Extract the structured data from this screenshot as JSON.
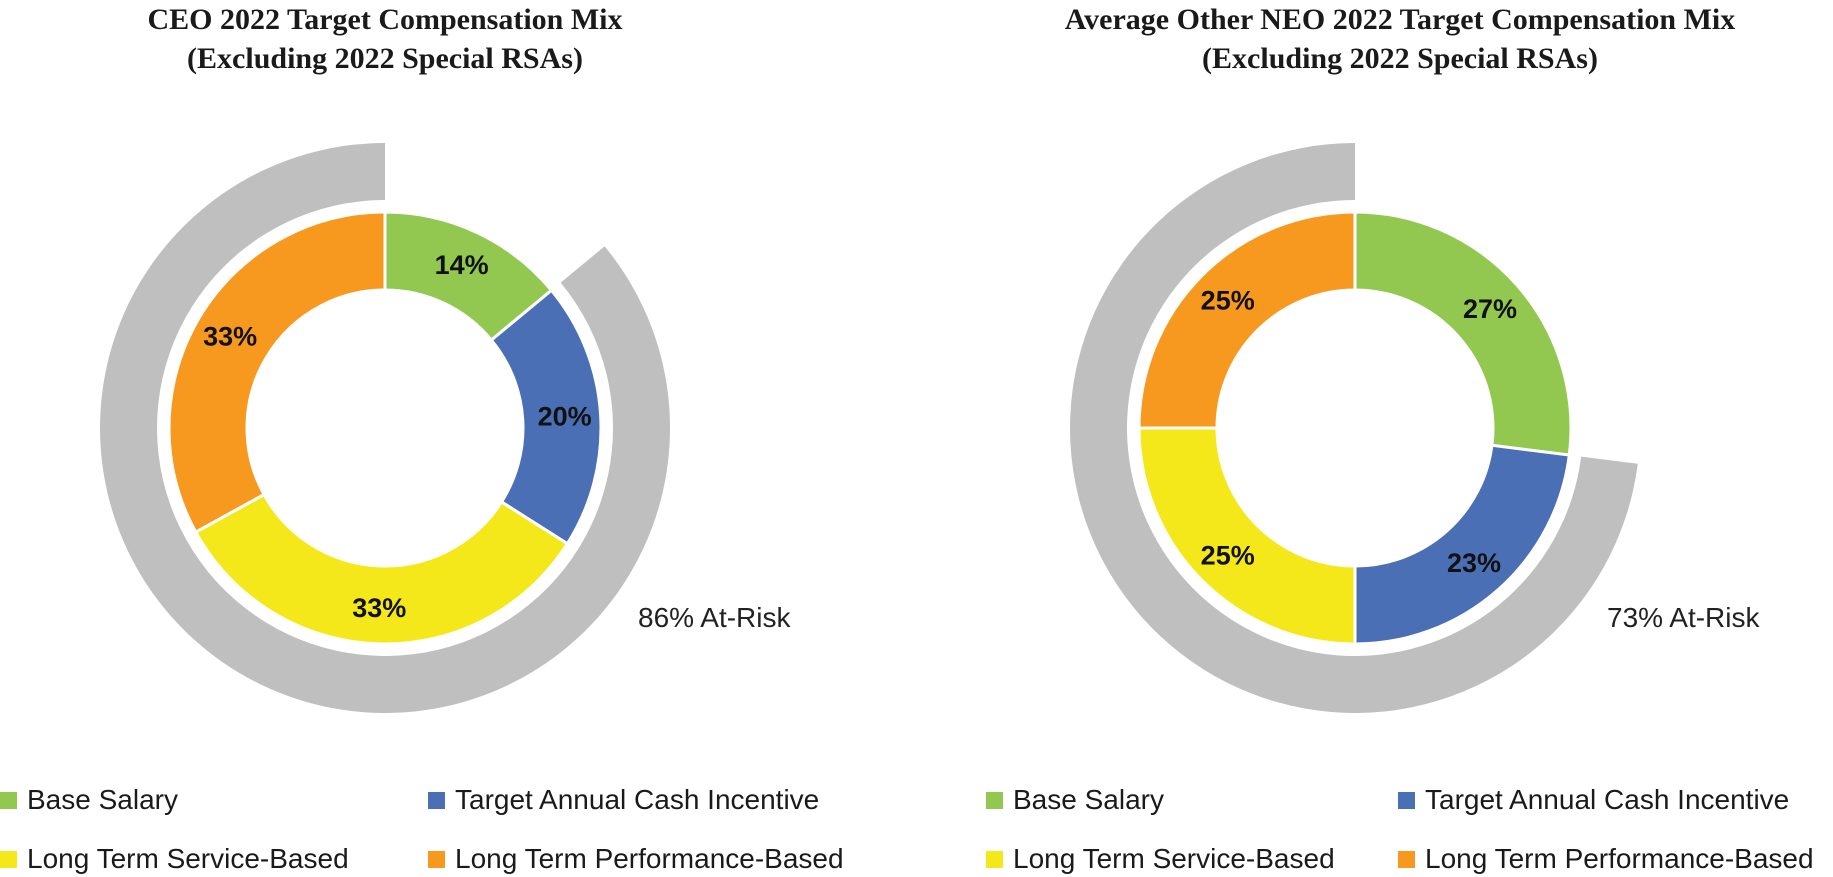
{
  "colors": {
    "base_salary": "#92c850",
    "target_annual_cash": "#4a6fb5",
    "lt_service": "#f5e81a",
    "lt_performance": "#f7981f",
    "at_risk_ring": "#bfbfbf"
  },
  "chart_data": [
    {
      "type": "pie",
      "subtype": "donut-with-outer-at-risk-ring",
      "title": [
        "CEO 2022 Target Compensation Mix",
        "(Excluding 2022 Special RSAs)"
      ],
      "categories": [
        "Base Salary",
        "Target Annual Cash Incentive",
        "Long Term Service-Based",
        "Long Term Performance-Based"
      ],
      "values": [
        14,
        20,
        33,
        33
      ],
      "labels": [
        "14%",
        "20%",
        "33%",
        "33%"
      ],
      "at_risk": {
        "value": 86,
        "label": "86% At-Risk"
      },
      "legend": [
        "Base Salary",
        "Target Annual Cash Incentive",
        "Long Term Service-Based",
        "Long Term Performance-Based"
      ],
      "legend_position": "bottom"
    },
    {
      "type": "pie",
      "subtype": "donut-with-outer-at-risk-ring",
      "title": [
        "Average Other NEO 2022 Target Compensation Mix",
        "(Excluding 2022 Special RSAs)"
      ],
      "categories": [
        "Base Salary",
        "Target Annual Cash Incentive",
        "Long Term Service-Based",
        "Long Term Performance-Based"
      ],
      "values": [
        27,
        23,
        25,
        25
      ],
      "labels": [
        "27%",
        "23%",
        "25%",
        "25%"
      ],
      "at_risk": {
        "value": 73,
        "label": "73% At-Risk"
      },
      "legend": [
        "Base Salary",
        "Target Annual Cash Incentive",
        "Long Term Service-Based",
        "Long Term Performance-Based"
      ],
      "legend_position": "bottom"
    }
  ]
}
